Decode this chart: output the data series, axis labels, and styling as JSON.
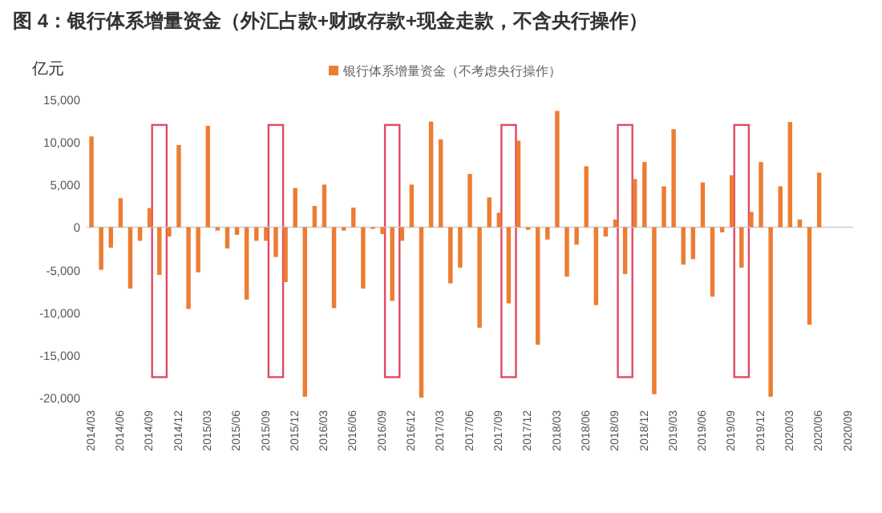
{
  "chart_data": {
    "type": "bar",
    "title": "图 4：银行体系增量资金（外汇占款+财政存款+现金走款，不含央行操作）",
    "ylabel": "亿元",
    "categories": [
      "2014/03",
      null,
      null,
      "2014/06",
      null,
      null,
      "2014/09",
      null,
      null,
      "2014/12",
      null,
      null,
      "2015/03",
      null,
      null,
      "2015/06",
      null,
      null,
      "2015/09",
      null,
      null,
      "2015/12",
      null,
      null,
      "2016/03",
      null,
      null,
      "2016/06",
      null,
      null,
      "2016/09",
      null,
      null,
      "2016/12",
      null,
      null,
      "2017/03",
      null,
      null,
      "2017/06",
      null,
      null,
      "2017/09",
      null,
      null,
      "2017/12",
      null,
      null,
      "2018/03",
      null,
      null,
      "2018/06",
      null,
      null,
      "2018/09",
      null,
      null,
      "2018/12",
      null,
      null,
      "2019/03",
      null,
      null,
      "2019/06",
      null,
      null,
      "2019/09",
      null,
      null,
      "2019/12",
      null,
      null,
      "2020/03",
      null,
      null,
      "2020/06",
      null,
      null,
      "2020/09"
    ],
    "series": [
      {
        "name": "银行体系增量资金（不考虑央行操作）",
        "color": "#ed7d31",
        "values": [
          10650,
          -5000,
          -2400,
          3400,
          -7200,
          -1600,
          2250,
          -5600,
          -1100,
          9650,
          -9600,
          -5300,
          11900,
          -400,
          -2500,
          -900,
          -8500,
          -1600,
          -1600,
          -3500,
          -6450,
          4600,
          -19900,
          2500,
          5000,
          -9500,
          -400,
          2300,
          -7200,
          -200,
          -800,
          -8650,
          -1600,
          5000,
          -20000,
          12400,
          10300,
          -6600,
          -4750,
          6250,
          -11800,
          3500,
          1700,
          -8950,
          10150,
          -300,
          -13800,
          -1450,
          13650,
          -5800,
          -2050,
          7150,
          -9150,
          -1100,
          900,
          -5500,
          5650,
          7650,
          -19600,
          4800,
          11500,
          -4400,
          -3750,
          5250,
          -8150,
          -600,
          6100,
          -4750,
          1800,
          7650,
          -19900,
          4800,
          12350,
          900,
          -11450,
          6400,
          null,
          null,
          null
        ]
      }
    ],
    "ref_lines": [
      {
        "axis": "y",
        "value": 0,
        "color": "#cccccc"
      }
    ],
    "ylim": [
      -20000,
      15000
    ],
    "yticks": [
      {
        "value": -20000,
        "label": "-20,000"
      },
      {
        "value": -15000,
        "label": "-15,000"
      },
      {
        "value": -10000,
        "label": "-10,000"
      },
      {
        "value": -5000,
        "label": "-5,000"
      },
      0,
      {
        "value": 5000,
        "label": "5,000"
      },
      {
        "value": 10000,
        "label": "10,000"
      },
      {
        "value": 15000,
        "label": "15,000"
      }
    ],
    "legend": "top",
    "grid": false
  }
}
